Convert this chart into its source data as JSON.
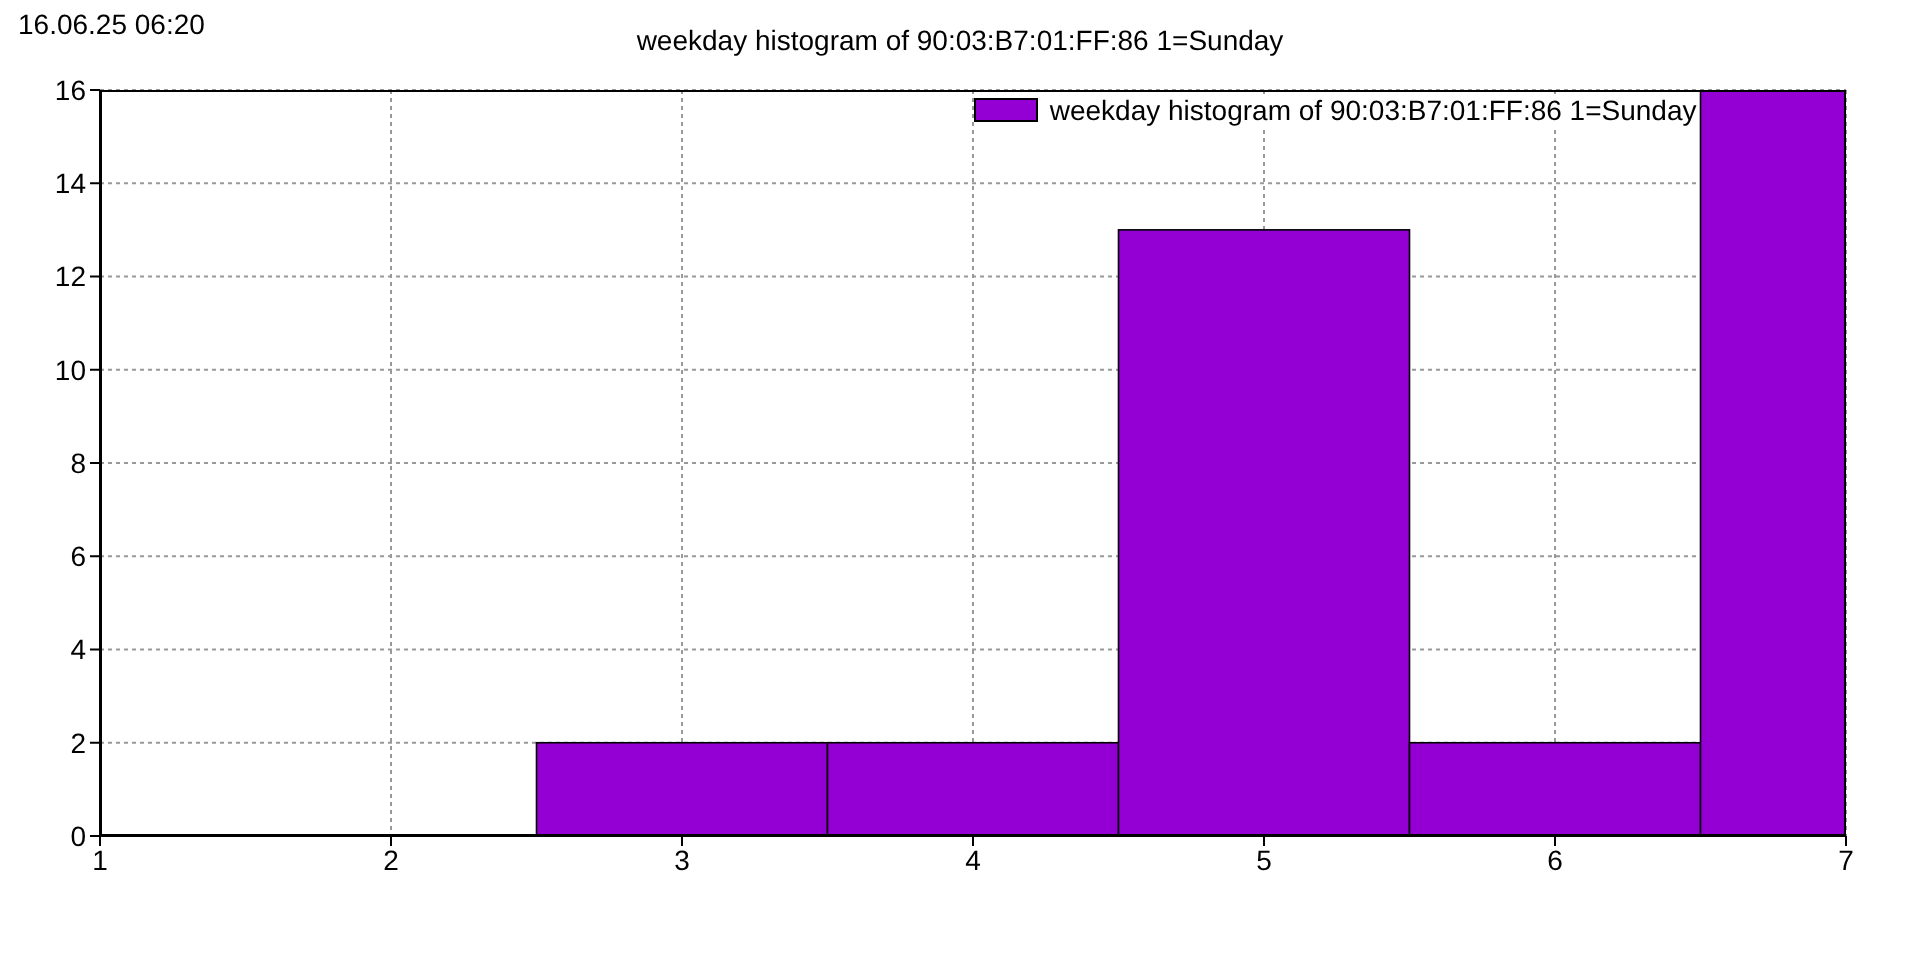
{
  "chart_data": {
    "type": "histogram",
    "title": "weekday histogram of 90:03:B7:01:FF:86 1=Sunday",
    "annotations": [
      "16.06.25 06:20"
    ],
    "bins": [
      2.5,
      3.5,
      4.5,
      5.5,
      6.5,
      7
    ],
    "series": [
      {
        "name": "weekday histogram of 90:03:B7:01:FF:86 1=Sunday",
        "color": "#9400d3",
        "values": [
          2,
          2,
          13,
          2,
          16
        ]
      }
    ],
    "xlim": [
      1,
      7
    ],
    "xticks": [
      1,
      2,
      3,
      4,
      5,
      6,
      7
    ],
    "ylim": [
      0,
      16
    ],
    "yticks": [
      0,
      2,
      4,
      6,
      8,
      10,
      12,
      14,
      16
    ],
    "grid": true,
    "legend": "top right"
  }
}
